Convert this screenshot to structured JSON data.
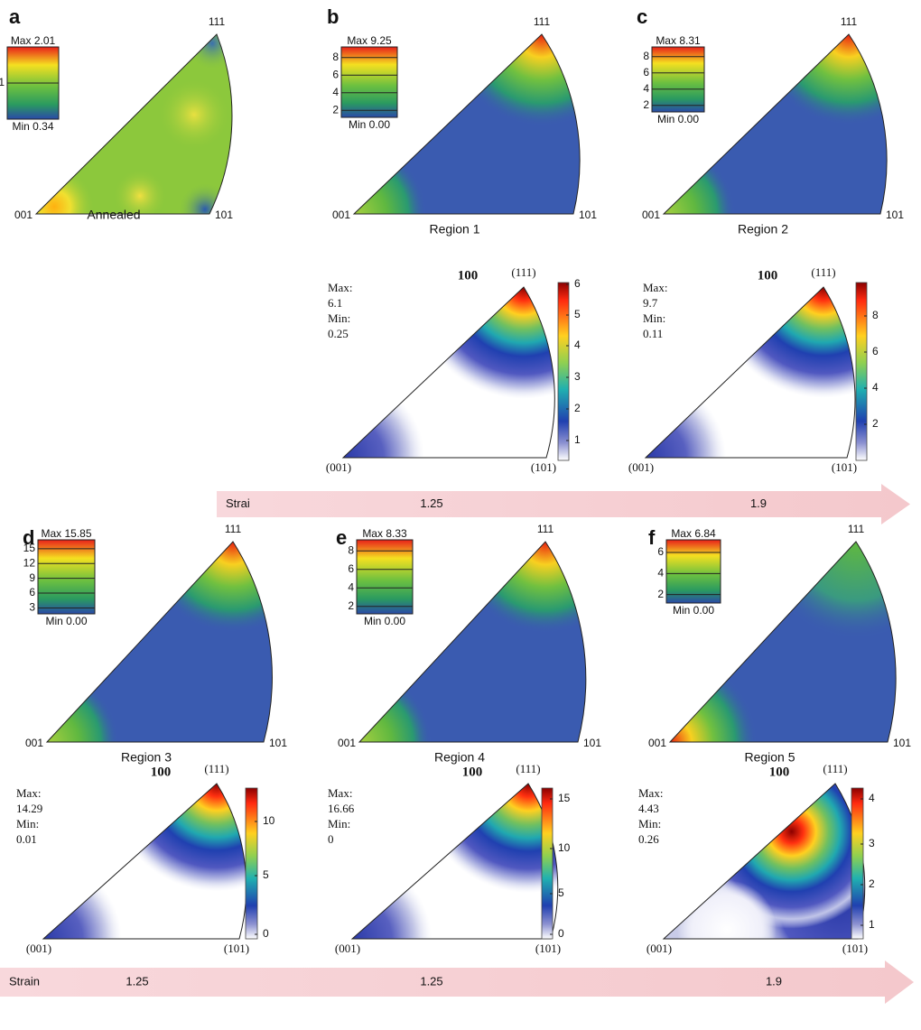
{
  "panels": [
    {
      "letter": "a",
      "max": "Max 2.01",
      "min": "Min 0.34",
      "ticks": [
        "1"
      ],
      "corner_001": "001",
      "corner_101": "101",
      "corner_111": "111",
      "caption": "Annealed"
    },
    {
      "letter": "b",
      "max": "Max 9.25",
      "min": "Min 0.00",
      "ticks": [
        "8",
        "6",
        "4",
        "2"
      ],
      "corner_001": "001",
      "corner_101": "101",
      "corner_111": "111",
      "caption": "Region 1"
    },
    {
      "letter": "c",
      "max": "Max 8.31",
      "min": "Min 0.00",
      "ticks": [
        "8",
        "6",
        "4",
        "2"
      ],
      "corner_001": "001",
      "corner_101": "101",
      "corner_111": "111",
      "caption": "Region 2"
    },
    {
      "letter": "d",
      "max": "Max 15.85",
      "min": "Min 0.00",
      "ticks": [
        "15",
        "12",
        "9",
        "6",
        "3"
      ],
      "corner_001": "001",
      "corner_101": "101",
      "corner_111": "111",
      "caption": "Region 3"
    },
    {
      "letter": "e",
      "max": "Max 8.33",
      "min": "Min 0.00",
      "ticks": [
        "8",
        "6",
        "4",
        "2"
      ],
      "corner_001": "001",
      "corner_101": "101",
      "corner_111": "111",
      "caption": "Region 4"
    },
    {
      "letter": "f",
      "max": "Max 6.84",
      "min": "Min 0.00",
      "ticks": [
        "6",
        "4",
        "2"
      ],
      "corner_001": "001",
      "corner_101": "101",
      "corner_111": "111",
      "caption": "Region 5"
    }
  ],
  "simulations": [
    {
      "title": "100",
      "corner_001": "(001)",
      "corner_101": "(101)",
      "corner_111": "(111)",
      "max_label": "Max:",
      "max": "6.1",
      "min_label": "Min:",
      "min": "0.25",
      "colorbar_ticks": [
        "6",
        "5",
        "4",
        "3",
        "2",
        "1"
      ]
    },
    {
      "title": "100",
      "corner_001": "(001)",
      "corner_101": "(101)",
      "corner_111": "(111)",
      "max_label": "Max:",
      "max": "9.7",
      "min_label": "Min:",
      "min": "0.11",
      "colorbar_ticks": [
        "8",
        "6",
        "4",
        "2"
      ]
    },
    {
      "title": "100",
      "corner_001": "(001)",
      "corner_101": "(101)",
      "corner_111": "(111)",
      "max_label": "Max:",
      "max": "14.29",
      "min_label": "Min:",
      "min": "0.01",
      "colorbar_ticks": [
        "10",
        "5",
        "0"
      ]
    },
    {
      "title": "100",
      "corner_001": "(001)",
      "corner_101": "(101)",
      "corner_111": "(111)",
      "max_label": "Max:",
      "max": "16.66",
      "min_label": "Min:",
      "min": "0",
      "colorbar_ticks": [
        "15",
        "10",
        "5",
        "0"
      ]
    },
    {
      "title": "100",
      "corner_001": "(001)",
      "corner_101": "(101)",
      "corner_111": "(111)",
      "max_label": "Max:",
      "max": "4.43",
      "min_label": "Min:",
      "min": "0.26",
      "colorbar_ticks": [
        "4",
        "3",
        "2",
        "1"
      ]
    }
  ],
  "strain_arrows": [
    {
      "label": "Strai",
      "values": [
        "1.25",
        "1.9"
      ]
    },
    {
      "label": "Strain",
      "values": [
        "1.25",
        "1.25",
        "1.9"
      ]
    }
  ]
}
